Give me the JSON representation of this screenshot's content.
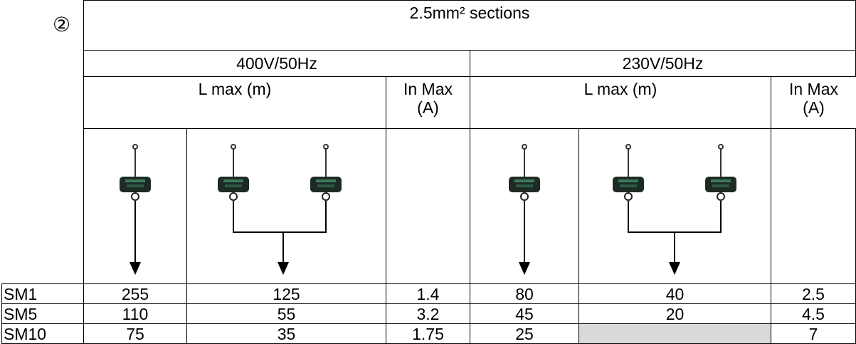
{
  "marker": "②",
  "table": {
    "title": "2.5mm² sections",
    "groups": [
      "400V/50Hz",
      "230V/50Hz"
    ],
    "headers": [
      "L max (m)",
      "In Max\n(A)",
      "L max (m)",
      "In Max\n(A)"
    ],
    "rows": [
      [
        "SM1",
        "255",
        "125",
        "1.4",
        "80",
        "40",
        "2.5"
      ],
      [
        "SM5",
        "110",
        "55",
        "3.2",
        "45",
        "20",
        "4.5"
      ],
      [
        "SM10",
        "75",
        "35",
        "1.75",
        "25",
        null,
        "7"
      ]
    ]
  }
}
